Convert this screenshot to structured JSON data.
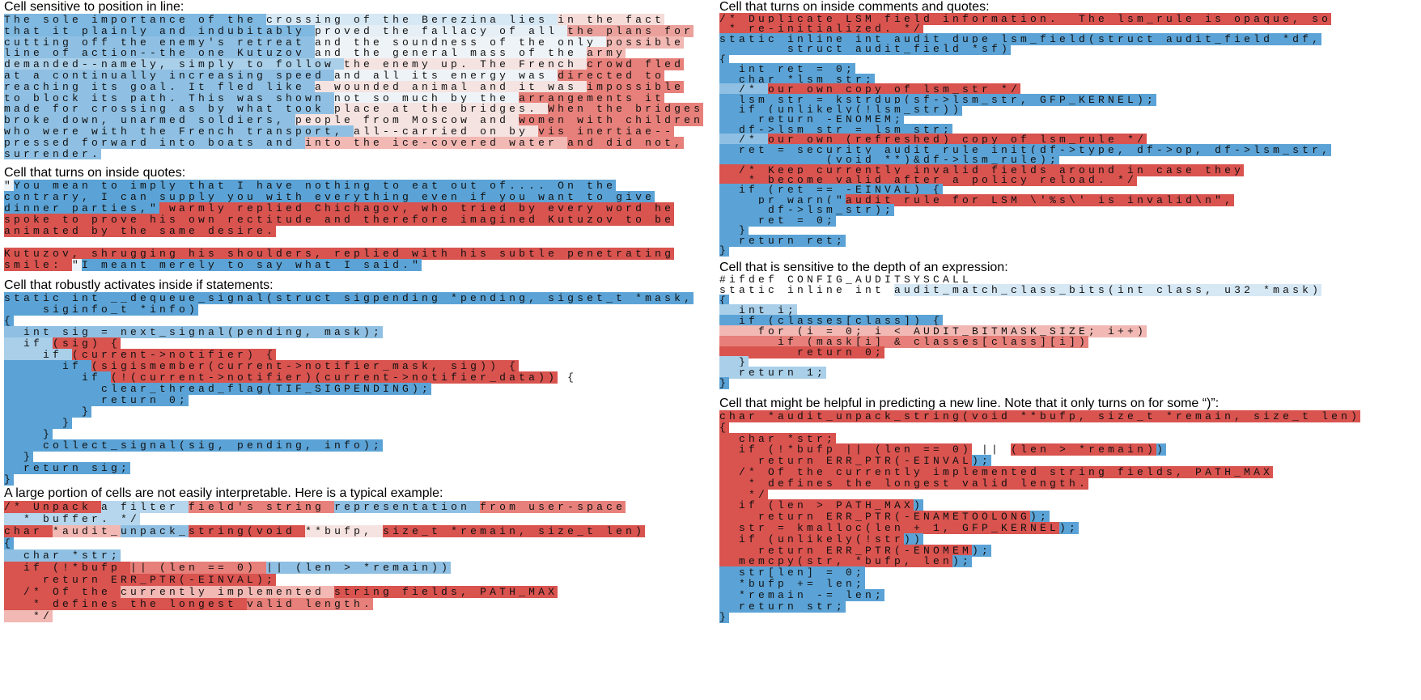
{
  "panels": [
    {
      "title": "Cell sensitive to position in line:",
      "blocks": [
        [
          [
            [
              "The sole importance of the ",
              "#7fb8e0"
            ],
            [
              "crossing of the Berezina lies ",
              "#d6e8f4"
            ],
            [
              "in the fact",
              "#f5dcd9"
            ]
          ],
          [
            [
              "that it plainly and indubitably ",
              "#7fb8e0"
            ],
            [
              "proved the fallacy of all ",
              "#e6eff6"
            ],
            [
              "the plans for",
              "#eaa19c"
            ]
          ],
          [
            [
              "cutting off the enemy's retreat ",
              "#8fc0e3"
            ],
            [
              "and the soundness of the only ",
              "#eef3f7"
            ],
            [
              "possible",
              "#f2b8b3"
            ]
          ],
          [
            [
              "line of action--the one Kutuzov ",
              "#8fc0e3"
            ],
            [
              "and the general mass of the ",
              "#eef3f7"
            ],
            [
              "army",
              "#f2b8b3"
            ]
          ],
          [
            [
              "demanded--namely, simply to follow ",
              "#a9cfe9"
            ],
            [
              "the enemy up. The French ",
              "#f5e3e1"
            ],
            [
              "crowd fled",
              "#e7807a"
            ]
          ],
          [
            [
              "at a continually increasing speed ",
              "#8fc0e3"
            ],
            [
              "and all its energy was ",
              "#eef3f7"
            ],
            [
              "directed to",
              "#e7807a"
            ]
          ],
          [
            [
              "reaching its goal. It fled like ",
              "#8fc0e3"
            ],
            [
              "a wounded animal and it was ",
              "#f5e3e1"
            ],
            [
              "impossible",
              "#e7807a"
            ]
          ],
          [
            [
              "to block its path. This was shown ",
              "#8fc0e3"
            ],
            [
              "not so much by the ",
              "#eef3f7"
            ],
            [
              "arrangements it",
              "#e7807a"
            ]
          ],
          [
            [
              "made for crossing as by what took ",
              "#8fc0e3"
            ],
            [
              "place at the bridges. ",
              "#f5e3e1"
            ],
            [
              "When the bridges",
              "#e7807a"
            ]
          ],
          [
            [
              "broke down, unarmed soldiers, ",
              "#8fc0e3"
            ],
            [
              "people from Moscow and ",
              "#f5e3e1"
            ],
            [
              "women with children",
              "#e7807a"
            ]
          ],
          [
            [
              "who were with the French transport, ",
              "#8fc0e3"
            ],
            [
              "all--carried on by ",
              "#f5e3e1"
            ],
            [
              "vis inertiae--",
              "#e7807a"
            ]
          ],
          [
            [
              "pressed forward into boats and ",
              "#8fc0e3"
            ],
            [
              "into the ice-covered water ",
              "#f2b8b3"
            ],
            [
              "and did not,",
              "#e7807a"
            ]
          ],
          [
            [
              "surrender.",
              "#8fc0e3"
            ]
          ]
        ]
      ]
    },
    {
      "title": "Cell that turns on inside quotes:",
      "blocks": [
        [
          [
            [
              "\"",
              "#eef3f7"
            ],
            [
              "You mean to imply that I have nothing to eat out of.... On the",
              "#5ba3d6"
            ]
          ],
          [
            [
              "contrary, I can supply you with everything even if you want to give",
              "#5ba3d6"
            ]
          ],
          [
            [
              "dinner parties,\"",
              "#5ba3d6"
            ],
            [
              " warmly replied Chichagov, who tried by every word he",
              "#d9534f"
            ]
          ],
          [
            [
              "spoke to prove his own rectitude and therefore imagined Kutuzov to be",
              "#d9534f"
            ]
          ],
          [
            [
              "animated by the same desire.",
              "#d9534f"
            ]
          ]
        ],
        [
          [
            [
              "Kutuzov, shrugging his shoulders, replied with his subtle penetrating",
              "#d9534f"
            ]
          ],
          [
            [
              "smile: ",
              "#d9534f"
            ],
            [
              "\"",
              "#eef3f7"
            ],
            [
              "I meant merely to say what I said.\"",
              "#5ba3d6"
            ]
          ]
        ]
      ]
    },
    {
      "title": "Cell that robustly activates inside if statements:",
      "blocks": [
        [
          [
            [
              "static int __dequeue_signal(struct sigpending *pending, sigset_t *mask,",
              "#5ba3d6"
            ]
          ],
          [
            [
              "    siginfo_t *info)",
              "#5ba3d6"
            ]
          ],
          [
            [
              "{",
              "#5ba3d6"
            ]
          ],
          [
            [
              "  int sig = next_signal(pending, mask);",
              "#8fc0e3"
            ]
          ],
          [
            [
              "  if ",
              "#a9cfe9"
            ],
            [
              "(sig) {",
              "#d9534f"
            ]
          ],
          [
            [
              "    if ",
              "#a9cfe9"
            ],
            [
              "(current->notifier) {",
              "#d9534f"
            ]
          ],
          [
            [
              "      if ",
              "#5ba3d6"
            ],
            [
              "(sigismember(current->notifier_mask, sig)) {",
              "#d9534f"
            ]
          ],
          [
            [
              "        if ",
              "#5ba3d6"
            ],
            [
              "(!(current->notifier)(current->notifier_data))",
              "#d9534f"
            ],
            [
              " {",
              "#ffffff"
            ]
          ],
          [
            [
              "          clear_thread_flag(TIF_SIGPENDING);",
              "#5ba3d6"
            ]
          ],
          [
            [
              "          return 0;",
              "#5ba3d6"
            ]
          ],
          [
            [
              "        }",
              "#5ba3d6"
            ]
          ],
          [
            [
              "      }",
              "#5ba3d6"
            ]
          ],
          [
            [
              "    }",
              "#5ba3d6"
            ]
          ],
          [
            [
              "    collect_signal(sig, pending, info);",
              "#5ba3d6"
            ]
          ],
          [
            [
              "  }",
              "#5ba3d6"
            ]
          ],
          [
            [
              "  return sig;",
              "#5ba3d6"
            ]
          ],
          [
            [
              "}",
              "#5ba3d6"
            ]
          ]
        ]
      ]
    },
    {
      "title": "A large portion of cells are not easily interpretable. Here is a typical example:",
      "blocks": [
        [
          [
            [
              "/* Unpack ",
              "#d9534f"
            ],
            [
              "a filter ",
              "#b5d6ec"
            ],
            [
              "field's string ",
              "#e7807a"
            ],
            [
              "representation ",
              "#8fc0e3"
            ],
            [
              "from user-space",
              "#e7807a"
            ]
          ],
          [
            [
              "  * buffer. */",
              "#b5d6ec"
            ]
          ],
          [
            [
              "char ",
              "#d9534f"
            ],
            [
              "*audit_",
              "#f2b8b3"
            ],
            [
              "unpack_",
              "#8fc0e3"
            ],
            [
              "string(void ",
              "#d9534f"
            ],
            [
              "**bufp, ",
              "#f5e3e1"
            ],
            [
              "size_t *remain, size_t len)",
              "#d9534f"
            ]
          ],
          [
            [
              "{",
              "#5ba3d6"
            ]
          ],
          [
            [
              "  char *str;",
              "#8fc0e3"
            ]
          ],
          [
            [
              "  if (!*bufp ",
              "#d9534f"
            ],
            [
              "|| (len == 0) ",
              "#e7807a"
            ],
            [
              "|| (len > *remain))",
              "#8fc0e3"
            ]
          ],
          [
            [
              "    return ",
              "#d9534f"
            ],
            [
              "ERR_PTR(-EINVAL);",
              "#d9534f"
            ]
          ],
          [
            [
              "  /* Of the ",
              "#d9534f"
            ],
            [
              "currently implemented ",
              "#f2b8b3"
            ],
            [
              "string fields, ",
              "#d9534f"
            ],
            [
              "PATH_MAX",
              "#d9534f"
            ]
          ],
          [
            [
              "   * defines the longest ",
              "#d9534f"
            ],
            [
              "valid length.",
              "#e7807a"
            ]
          ],
          [
            [
              "   */",
              "#f2b8b3"
            ]
          ]
        ]
      ]
    },
    {
      "title": "Cell that turns on inside comments and quotes:",
      "blocks": [
        [
          [
            [
              "/* Duplicate LSM field information.  The lsm_rule is opaque, so",
              "#d9534f"
            ]
          ],
          [
            [
              " * re-initialized. */",
              "#d9534f"
            ]
          ],
          [
            [
              "static inline int audit_dupe_lsm_field(struct audit_field *df,",
              "#5ba3d6"
            ]
          ],
          [
            [
              "       struct audit_field *sf)",
              "#5ba3d6"
            ]
          ],
          [
            [
              "{",
              "#5ba3d6"
            ]
          ],
          [
            [
              "  int ret = 0;",
              "#5ba3d6"
            ]
          ],
          [
            [
              "  char *lsm_str;",
              "#5ba3d6"
            ]
          ],
          [
            [
              "  /* ",
              "#8fc0e3"
            ],
            [
              "our own copy of lsm_str */",
              "#d9534f"
            ]
          ],
          [
            [
              "  lsm_str = kstrdup(sf->lsm_str, GFP_KERNEL);",
              "#5ba3d6"
            ]
          ],
          [
            [
              "  if (unlikely(!lsm_str))",
              "#5ba3d6"
            ]
          ],
          [
            [
              "    return -ENOMEM;",
              "#5ba3d6"
            ]
          ],
          [
            [
              "  df->lsm_str = lsm_str;",
              "#5ba3d6"
            ]
          ],
          [
            [
              "  /* ",
              "#8fc0e3"
            ],
            [
              "our own (refreshed) copy of lsm_rule */",
              "#d9534f"
            ]
          ],
          [
            [
              "  ret = security_audit_rule_init(df->type, df->op, df->lsm_str,",
              "#5ba3d6"
            ]
          ],
          [
            [
              "           (void **)&df->lsm_rule);",
              "#5ba3d6"
            ]
          ],
          [
            [
              "  /* Keep currently invalid fields around in case they",
              "#d9534f"
            ]
          ],
          [
            [
              "   * become valid after a policy reload. */",
              "#d9534f"
            ]
          ],
          [
            [
              "  if (ret == -EINVAL) {",
              "#5ba3d6"
            ]
          ],
          [
            [
              "    pr_warn(\"",
              "#5ba3d6"
            ],
            [
              "audit rule for LSM \\'%s\\' is invalid\\n\",",
              "#d9534f"
            ]
          ],
          [
            [
              "     df->lsm_str);",
              "#5ba3d6"
            ]
          ],
          [
            [
              "    ret = 0;",
              "#5ba3d6"
            ]
          ],
          [
            [
              "  }",
              "#5ba3d6"
            ]
          ],
          [
            [
              "  return ret;",
              "#5ba3d6"
            ]
          ],
          [
            [
              "}",
              "#5ba3d6"
            ]
          ]
        ]
      ]
    },
    {
      "title": "Cell that is sensitive to the depth of an expression:",
      "blocks": [
        [
          [
            [
              "#ifdef CONFIG_AUDITSYSCALL",
              "#ffffff"
            ]
          ],
          [
            [
              "static inline int ",
              "#ffffff"
            ],
            [
              "audit_match_class_bits(int class, u32 *mask)",
              "#d6e8f4"
            ]
          ],
          [
            [
              "{",
              "#5ba3d6"
            ]
          ],
          [
            [
              "  int i;",
              "#a9cfe9"
            ]
          ],
          [
            [
              "  if (classes[class]) {",
              "#5ba3d6"
            ]
          ],
          [
            [
              "    for (i = 0; i < AUDIT_BITMASK_SIZE; i++)",
              "#f2b8b3"
            ]
          ],
          [
            [
              "      if (mask[i] & classes[class][i])",
              "#e7807a"
            ]
          ],
          [
            [
              "        return 0;",
              "#d9534f"
            ]
          ],
          [
            [
              "  }",
              "#a9cfe9"
            ]
          ],
          [
            [
              "  return 1;",
              "#a9cfe9"
            ]
          ],
          [
            [
              "}",
              "#5ba3d6"
            ]
          ]
        ]
      ]
    },
    {
      "title": "Cell that might be helpful in predicting a new line. Note that it only turns on for some “)”:",
      "blocks": [
        [
          [
            [
              "char *audit_unpack_string(void **bufp, size_t *remain, size_t len)",
              "#d9534f"
            ]
          ],
          [
            [
              "{",
              "#d9534f"
            ]
          ],
          [
            [
              "  char *str;",
              "#d9534f"
            ]
          ],
          [
            [
              "  if (!*bufp || (len == 0)",
              "#d9534f"
            ],
            [
              " || ",
              "#ffffff"
            ],
            [
              "(len > *remain)",
              "#d9534f"
            ],
            [
              ")",
              "#5ba3d6"
            ]
          ],
          [
            [
              "    return ERR_PTR(-EINVAL",
              "#d9534f"
            ],
            [
              ");",
              "#5ba3d6"
            ]
          ],
          [
            [
              "  /* Of the currently implemented string fields, PATH_MAX",
              "#d9534f"
            ]
          ],
          [
            [
              "   * defines the longest valid length.",
              "#d9534f"
            ]
          ],
          [
            [
              "   */",
              "#d9534f"
            ]
          ],
          [
            [
              "  if (len > PATH_MAX",
              "#d9534f"
            ],
            [
              ")",
              "#5ba3d6"
            ]
          ],
          [
            [
              "    return ERR_PTR(-ENAMETOOLONG",
              "#d9534f"
            ],
            [
              ");",
              "#5ba3d6"
            ]
          ],
          [
            [
              "  str = kmalloc(len + 1, GFP_KERNEL",
              "#d9534f"
            ],
            [
              ");",
              "#5ba3d6"
            ]
          ],
          [
            [
              "  if (unlikely(!str",
              "#d9534f"
            ],
            [
              "))",
              "#5ba3d6"
            ]
          ],
          [
            [
              "    return ERR_PTR(-ENOMEM",
              "#d9534f"
            ],
            [
              ");",
              "#5ba3d6"
            ]
          ],
          [
            [
              "  memcpy(str, *bufp, len",
              "#d9534f"
            ],
            [
              ");",
              "#5ba3d6"
            ]
          ],
          [
            [
              "  str[len] = 0;",
              "#5ba3d6"
            ]
          ],
          [
            [
              "  *bufp += len;",
              "#5ba3d6"
            ]
          ],
          [
            [
              "  *remain -= len;",
              "#5ba3d6"
            ]
          ],
          [
            [
              "  return str;",
              "#5ba3d6"
            ]
          ],
          [
            [
              "}",
              "#5ba3d6"
            ]
          ]
        ]
      ]
    }
  ]
}
